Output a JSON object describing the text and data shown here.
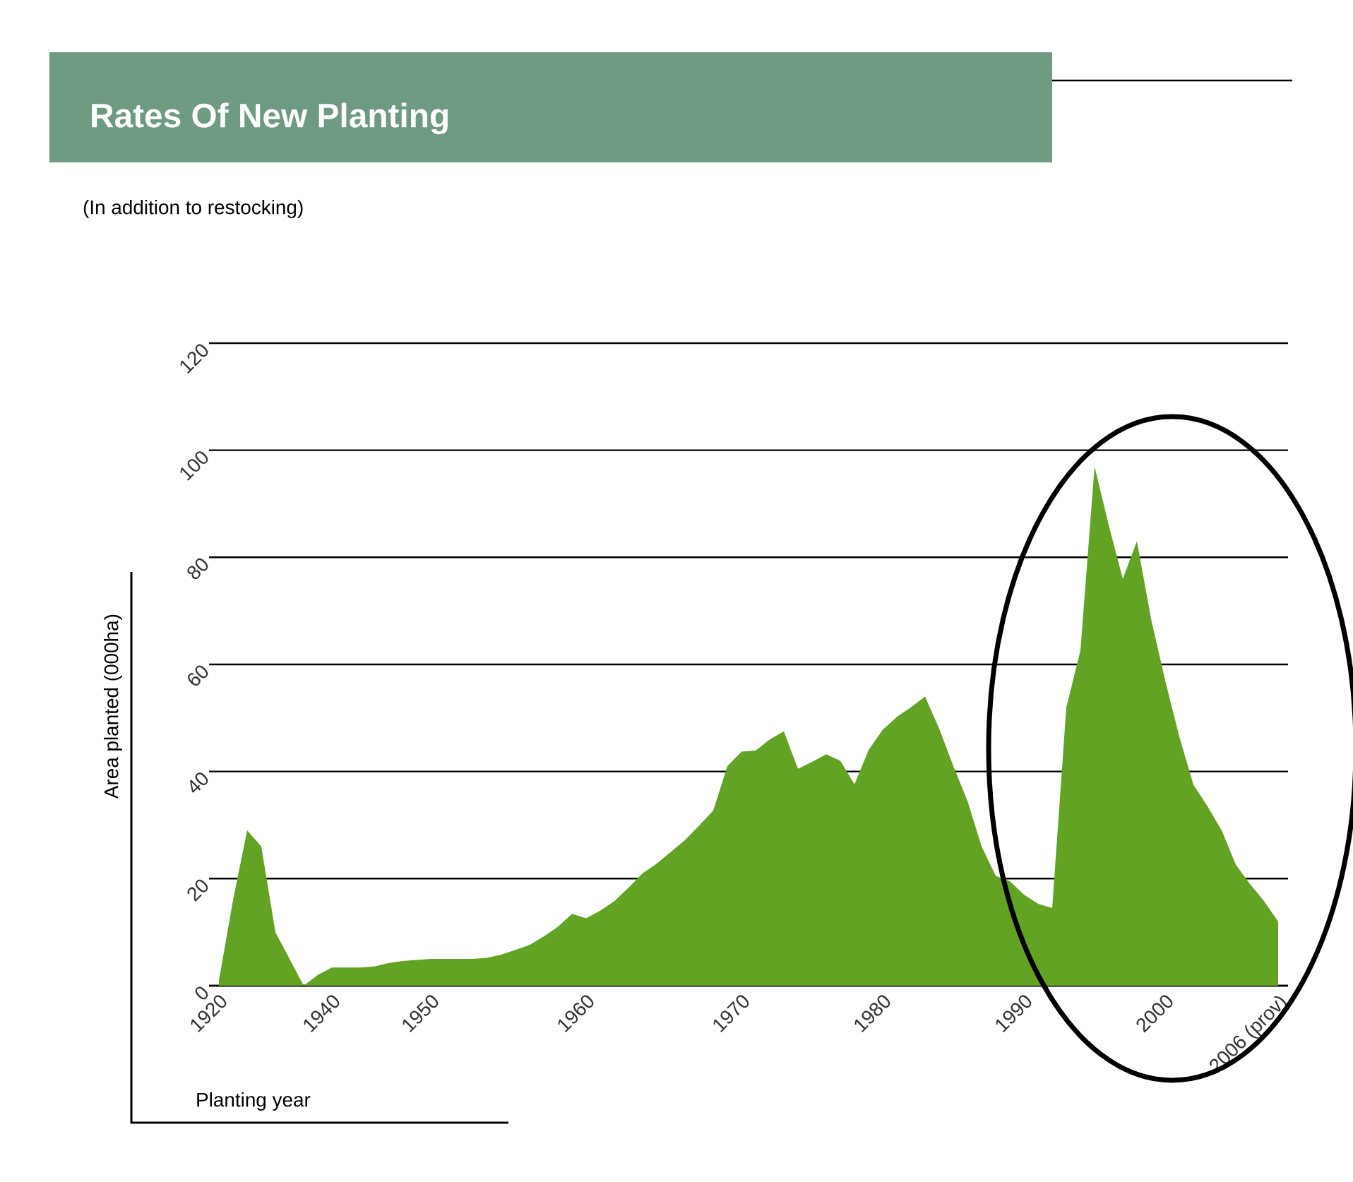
{
  "chart_data": {
    "type": "area",
    "title": "Rates Of New Planting",
    "subtitle": "(In addition to restocking)",
    "xlabel": "Planting year",
    "ylabel": "Area planted (000ha)",
    "categories": [
      "1920",
      null,
      null,
      null,
      null,
      null,
      null,
      null,
      "1940",
      null,
      null,
      null,
      null,
      null,
      null,
      "1950",
      null,
      null,
      null,
      null,
      null,
      null,
      null,
      null,
      null,
      null,
      "1960",
      null,
      null,
      null,
      null,
      null,
      null,
      null,
      null,
      null,
      null,
      "1970",
      null,
      null,
      null,
      null,
      null,
      null,
      null,
      null,
      null,
      "1980",
      null,
      null,
      null,
      null,
      null,
      null,
      null,
      null,
      null,
      "1990",
      null,
      null,
      null,
      null,
      null,
      null,
      null,
      null,
      null,
      "2000",
      null,
      null,
      null,
      null,
      null,
      null,
      null,
      "2006 (prov)"
    ],
    "values": [
      1,
      16,
      29,
      26,
      10,
      5,
      0,
      2,
      3.4,
      3.4,
      3.4,
      3.6,
      4.2,
      4.6,
      4.8,
      5,
      5,
      5,
      5,
      5.2,
      5.8,
      6.7,
      7.6,
      9.2,
      11,
      13.4,
      12.6,
      14,
      15.8,
      18.3,
      21,
      22.8,
      25,
      27.2,
      29.9,
      32.7,
      41,
      43.7,
      43.9,
      46,
      47.5,
      40.5,
      41.8,
      43.2,
      42,
      37.6,
      44,
      47.8,
      50.2,
      52,
      54,
      48,
      41,
      34.5,
      26,
      20.5,
      19.5,
      17,
      15.3,
      14.5,
      52,
      62.6,
      97,
      86,
      76,
      83,
      68.5,
      57,
      46.5,
      37.5,
      33.5,
      29,
      22.6,
      19,
      15.8,
      12
    ],
    "color": "#63a323",
    "ylim": [
      0,
      120
    ],
    "yticks": [
      0,
      20,
      40,
      60,
      80,
      100,
      120
    ],
    "grid": "y"
  }
}
